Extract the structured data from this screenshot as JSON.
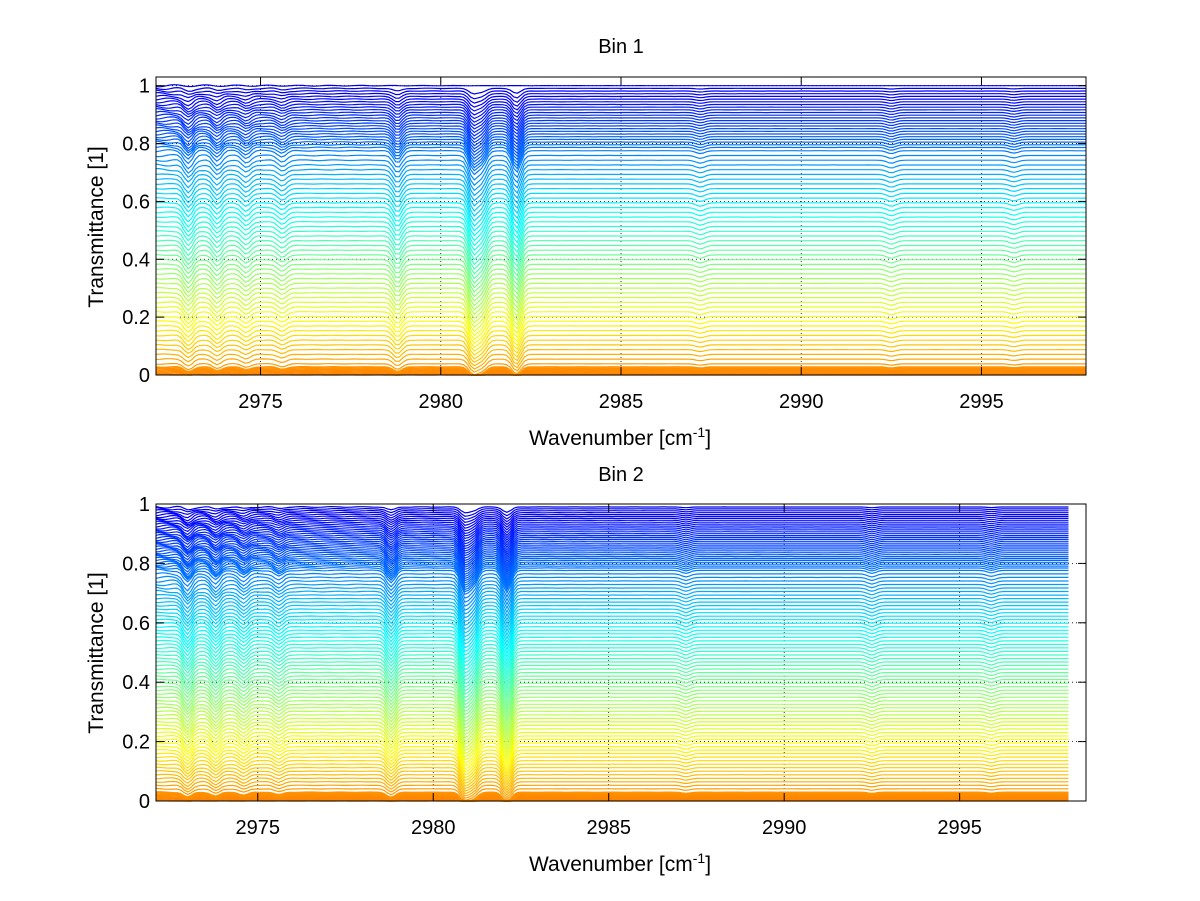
{
  "chart_data": [
    {
      "type": "line",
      "title": "Bin 1",
      "xlabel": "Wavenumber [cm",
      "xlabel_sup": "-1",
      "xlabel_end": "]",
      "ylabel": "Transmittance [1]",
      "xlim": [
        2972.1,
        2997.9
      ],
      "ylim": [
        0,
        1.03
      ],
      "xticks": [
        2975,
        2980,
        2985,
        2990,
        2995
      ],
      "yticks": [
        0,
        0.2,
        0.4,
        0.6,
        0.8,
        1
      ],
      "ytick_labels": [
        "0",
        "0.2",
        "0.4",
        "0.6",
        "0.8",
        "1"
      ],
      "grid": true,
      "data_x_range": [
        2972.1,
        2997.9
      ],
      "series_description_levels": {
        "count": 80,
        "min": 0.0,
        "max": 1.0,
        "colormap": "jet"
      },
      "absorption_lines": [
        {
          "x": 2973.0,
          "depth": 0.05
        },
        {
          "x": 2973.8,
          "depth": 0.04
        },
        {
          "x": 2974.6,
          "depth": 0.03
        },
        {
          "x": 2975.6,
          "depth": 0.025
        },
        {
          "x": 2978.8,
          "depth": 0.05
        },
        {
          "x": 2980.9,
          "depth": 0.09
        },
        {
          "x": 2981.15,
          "depth": 0.06
        },
        {
          "x": 2982.1,
          "depth": 0.09
        },
        {
          "x": 2987.2,
          "depth": 0.012
        },
        {
          "x": 2992.5,
          "depth": 0.012
        },
        {
          "x": 2995.9,
          "depth": 0.01
        }
      ]
    },
    {
      "type": "line",
      "title": "Bin 2",
      "xlabel": "Wavenumber [cm",
      "xlabel_sup": "-1",
      "xlabel_end": "]",
      "ylabel": "Transmittance [1]",
      "xlim": [
        2972.1,
        2998.6
      ],
      "ylim": [
        0,
        1.0
      ],
      "xticks": [
        2975,
        2980,
        2985,
        2990,
        2995
      ],
      "yticks": [
        0,
        0.2,
        0.4,
        0.6,
        0.8,
        1
      ],
      "ytick_labels": [
        "0",
        "0.2",
        "0.4",
        "0.6",
        "0.8",
        "1"
      ],
      "grid": true,
      "data_x_range": [
        2972.1,
        2998.1
      ],
      "series_description_levels": {
        "count": 110,
        "min": 0.0,
        "max": 0.99,
        "colormap": "jet"
      },
      "absorption_lines": [
        {
          "x": 2973.0,
          "depth": 0.05
        },
        {
          "x": 2973.8,
          "depth": 0.04
        },
        {
          "x": 2974.6,
          "depth": 0.03
        },
        {
          "x": 2975.6,
          "depth": 0.025
        },
        {
          "x": 2978.8,
          "depth": 0.05
        },
        {
          "x": 2980.9,
          "depth": 0.09
        },
        {
          "x": 2981.15,
          "depth": 0.06
        },
        {
          "x": 2982.1,
          "depth": 0.09
        },
        {
          "x": 2987.2,
          "depth": 0.012
        },
        {
          "x": 2992.5,
          "depth": 0.012
        },
        {
          "x": 2995.9,
          "depth": 0.01
        }
      ]
    }
  ]
}
